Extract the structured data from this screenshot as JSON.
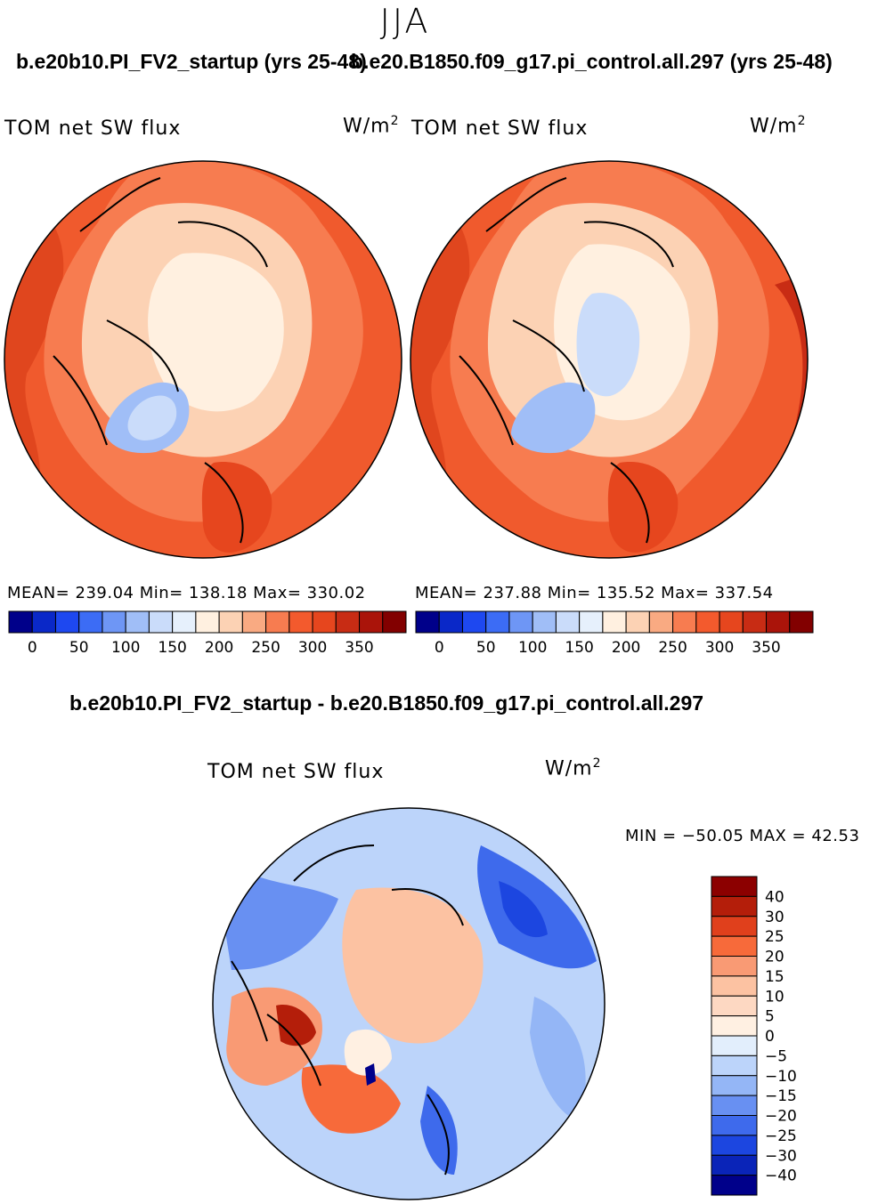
{
  "season": "JJA",
  "panels": [
    {
      "title": "b.e20b10.PI_FV2_startup (yrs 25-48)",
      "variable": "TOM net SW flux",
      "units": "W/m",
      "units_exp": "2",
      "stats": "MEAN= 239.04   Min= 138.18   Max= 330.02"
    },
    {
      "title": "b.e20.B1850.f09_g17.pi_control.all.297 (yrs 25-48)",
      "variable": "TOM net SW flux",
      "units": "W/m",
      "units_exp": "2",
      "stats": "MEAN= 237.88   Min= 135.52   Max= 337.54"
    }
  ],
  "difference": {
    "title": "b.e20b10.PI_FV2_startup - b.e20.B1850.f09_g17.pi_control.all.297",
    "variable": "TOM net SW flux",
    "units": "W/m",
    "units_exp": "2",
    "minmax": "MIN = −50.05 MAX =   42.53"
  },
  "chart_data": [
    {
      "type": "heatmap",
      "projection": "north-polar-stereographic",
      "title": "b.e20b10.PI_FV2_startup (yrs 25-48)",
      "variable": "TOM net SW flux",
      "units": "W/m2",
      "mean": 239.04,
      "min": 138.18,
      "max": 330.02,
      "colorbar_levels": [
        -25,
        0,
        25,
        50,
        75,
        100,
        125,
        150,
        175,
        200,
        225,
        250,
        275,
        300,
        325,
        350,
        375
      ],
      "colorbar_tick_labels": [
        "0",
        "50",
        "100",
        "150",
        "200",
        "250",
        "300",
        "350"
      ],
      "colorbar_colors": [
        "#00008a",
        "#0a28c8",
        "#1e48f0",
        "#3c6cf5",
        "#6e96f5",
        "#a0bef7",
        "#cadcfa",
        "#e6f0fc",
        "#fff0e0",
        "#fcd2b4",
        "#f9aa82",
        "#f77c50",
        "#f35a2d",
        "#e6461e",
        "#c82c14",
        "#aa140a",
        "#820000"
      ],
      "fields": {
        "arctic_center": 185,
        "greenland": 140,
        "northern_landmasses": 215,
        "mid_latitude_oceans": 290
      }
    },
    {
      "type": "heatmap",
      "projection": "north-polar-stereographic",
      "title": "b.e20.B1850.f09_g17.pi_control.all.297 (yrs 25-48)",
      "variable": "TOM net SW flux",
      "units": "W/m2",
      "mean": 237.88,
      "min": 135.52,
      "max": 337.54,
      "colorbar_levels": [
        -25,
        0,
        25,
        50,
        75,
        100,
        125,
        150,
        175,
        200,
        225,
        250,
        275,
        300,
        325,
        350,
        375
      ],
      "colorbar_tick_labels": [
        "0",
        "50",
        "100",
        "150",
        "200",
        "250",
        "300",
        "350"
      ],
      "colorbar_colors": [
        "#00008a",
        "#0a28c8",
        "#1e48f0",
        "#3c6cf5",
        "#6e96f5",
        "#a0bef7",
        "#cadcfa",
        "#e6f0fc",
        "#fff0e0",
        "#fcd2b4",
        "#f9aa82",
        "#f77c50",
        "#f35a2d",
        "#e6461e",
        "#c82c14",
        "#aa140a",
        "#820000"
      ],
      "fields": {
        "arctic_center": 165,
        "greenland": 140,
        "northern_landmasses": 210,
        "mid_latitude_oceans": 300
      }
    },
    {
      "type": "heatmap",
      "projection": "north-polar-stereographic",
      "title": "b.e20b10.PI_FV2_startup - b.e20.B1850.f09_g17.pi_control.all.297",
      "variable": "TOM net SW flux",
      "units": "W/m2",
      "min": -50.05,
      "max": 42.53,
      "colorbar_levels": [
        40,
        30,
        25,
        20,
        15,
        10,
        5,
        0,
        -5,
        -10,
        -15,
        -20,
        -25,
        -30,
        -40
      ],
      "colorbar_tick_labels": [
        "40",
        "30",
        "25",
        "20",
        "15",
        "10",
        "5",
        "0",
        "−5",
        "−10",
        "−15",
        "−20",
        "−25",
        "−30",
        "−40"
      ],
      "colorbar_colors": [
        "#8c0000",
        "#b41e0a",
        "#e0401c",
        "#f76a3a",
        "#f99a74",
        "#fcc2a2",
        "#fdd8c2",
        "#fff0e2",
        "#e2eefc",
        "#bcd4fa",
        "#94b6f6",
        "#6890f2",
        "#3e6aec",
        "#1c46e0",
        "#0a24b8",
        "#00008a"
      ],
      "fields": {
        "arctic_center": 7,
        "greenland_rim": 28,
        "north_atlantic": -18,
        "north_pacific": -22,
        "siberia": -12
      }
    }
  ]
}
